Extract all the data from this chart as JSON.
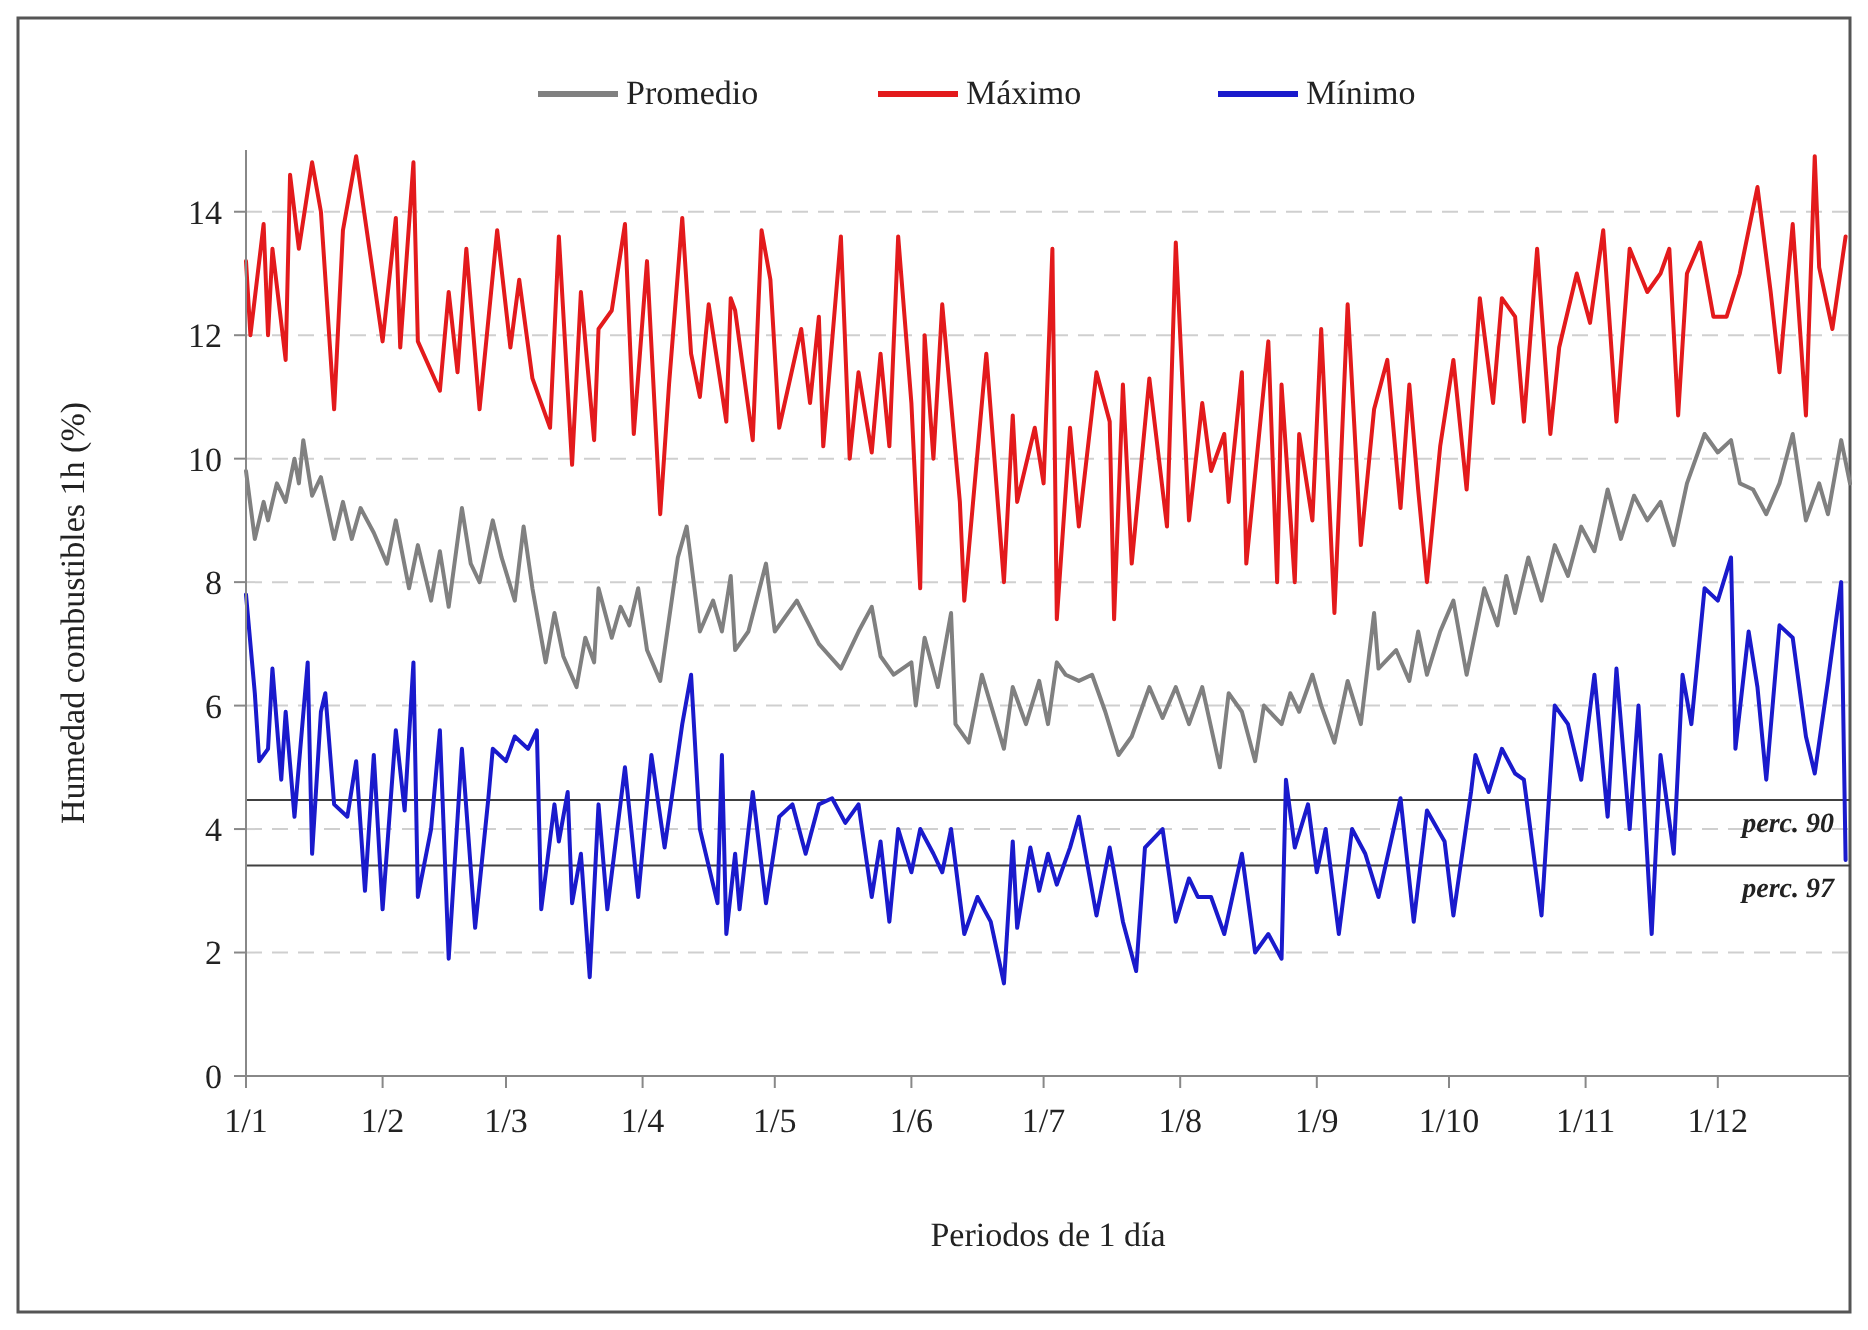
{
  "chart_data": {
    "type": "line",
    "xlabel": "Periodos de 1 día",
    "ylabel": "Humedad combustibles 1h (%)",
    "xlim": [
      "--01-01",
      "--12-31"
    ],
    "ylim": [
      0,
      15
    ],
    "xticks": [
      {
        "value": "--01-01",
        "label": "1/1"
      },
      {
        "value": "--02-01",
        "label": "1/2"
      },
      {
        "value": "--03-01",
        "label": "1/3"
      },
      {
        "value": "--04-01",
        "label": "1/4"
      },
      {
        "value": "--05-01",
        "label": "1/5"
      },
      {
        "value": "--06-01",
        "label": "1/6"
      },
      {
        "value": "--07-01",
        "label": "1/7"
      },
      {
        "value": "--08-01",
        "label": "1/8"
      },
      {
        "value": "--09-01",
        "label": "1/9"
      },
      {
        "value": "--10-01",
        "label": "1/10"
      },
      {
        "value": "--11-01",
        "label": "1/11"
      },
      {
        "value": "--12-01",
        "label": "1/12"
      }
    ],
    "yticks": [
      0,
      2,
      4,
      6,
      8,
      10,
      12,
      14
    ],
    "grid": "y",
    "legend": "top",
    "line_style": "solid",
    "marker": "none",
    "ref_lines": [
      {
        "axis": "y",
        "value": 4.47,
        "label": "perc. 90",
        "color": "#404040"
      },
      {
        "axis": "y",
        "value": 3.41,
        "label": "perc. 97",
        "color": "#404040"
      }
    ],
    "series": [
      {
        "name": "Promedio",
        "color": "#808080",
        "x": [
          "--01-01",
          "--01-03",
          "--01-05",
          "--01-06",
          "--01-08",
          "--01-10",
          "--01-12",
          "--01-13",
          "--01-14",
          "--01-16",
          "--01-18",
          "--01-21",
          "--01-23",
          "--01-25",
          "--01-27",
          "--01-30",
          "--02-02",
          "--02-04",
          "--02-07",
          "--02-09",
          "--02-12",
          "--02-14",
          "--02-16",
          "--02-19",
          "--02-21",
          "--02-23",
          "--02-26",
          "--02-28",
          "--03-03",
          "--03-05",
          "--03-07",
          "--03-10",
          "--03-12",
          "--03-14",
          "--03-17",
          "--03-19",
          "--03-21",
          "--03-22",
          "--03-25",
          "--03-27",
          "--03-29",
          "--03-31",
          "--04-02",
          "--04-05",
          "--04-09",
          "--04-11",
          "--04-14",
          "--04-17",
          "--04-19",
          "--04-21",
          "--04-22",
          "--04-25",
          "--04-29",
          "--05-01",
          "--05-06",
          "--05-11",
          "--05-16",
          "--05-20",
          "--05-23",
          "--05-25",
          "--05-28",
          "--06-01",
          "--06-02",
          "--06-04",
          "--06-07",
          "--06-10",
          "--06-11",
          "--06-14",
          "--06-17",
          "--06-22",
          "--06-24",
          "--06-27",
          "--06-30",
          "--07-02",
          "--07-04",
          "--07-06",
          "--07-09",
          "--07-12",
          "--07-15",
          "--07-18",
          "--07-21",
          "--07-25",
          "--07-28",
          "--07-31",
          "--08-03",
          "--08-06",
          "--08-10",
          "--08-12",
          "--08-15",
          "--08-18",
          "--08-20",
          "--08-24",
          "--08-26",
          "--08-28",
          "--08-31",
          "--09-02",
          "--09-05",
          "--09-08",
          "--09-11",
          "--09-14",
          "--09-15",
          "--09-19",
          "--09-22",
          "--09-24",
          "--09-26",
          "--09-29",
          "--10-02",
          "--10-05",
          "--10-09",
          "--10-12",
          "--10-14",
          "--10-16",
          "--10-19",
          "--10-22",
          "--10-25",
          "--10-28",
          "--10-31",
          "--11-03",
          "--11-06",
          "--11-09",
          "--11-12",
          "--11-15",
          "--11-18",
          "--11-21",
          "--11-24",
          "--11-28",
          "--12-01",
          "--12-04",
          "--12-06",
          "--12-09",
          "--12-12",
          "--12-15",
          "--12-18",
          "--12-21",
          "--12-24",
          "--12-26",
          "--12-29",
          "--12-31"
        ],
        "values": [
          9.8,
          8.7,
          9.3,
          9.0,
          9.6,
          9.3,
          10.0,
          9.6,
          10.3,
          9.4,
          9.7,
          8.7,
          9.3,
          8.7,
          9.2,
          8.8,
          8.3,
          9.0,
          7.9,
          8.6,
          7.7,
          8.5,
          7.6,
          9.2,
          8.3,
          8.0,
          9.0,
          8.4,
          7.7,
          8.9,
          7.9,
          6.7,
          7.5,
          6.8,
          6.3,
          7.1,
          6.7,
          7.9,
          7.1,
          7.6,
          7.3,
          7.9,
          6.9,
          6.4,
          8.4,
          8.9,
          7.2,
          7.7,
          7.2,
          8.1,
          6.9,
          7.2,
          8.3,
          7.2,
          7.7,
          7.0,
          6.6,
          7.2,
          7.6,
          6.8,
          6.5,
          6.7,
          6.0,
          7.1,
          6.3,
          7.5,
          5.7,
          5.4,
          6.5,
          5.3,
          6.3,
          5.7,
          6.4,
          5.7,
          6.7,
          6.5,
          6.4,
          6.5,
          5.9,
          5.2,
          5.5,
          6.3,
          5.8,
          6.3,
          5.7,
          6.3,
          5.0,
          6.2,
          5.9,
          5.1,
          6.0,
          5.7,
          6.2,
          5.9,
          6.5,
          6.0,
          5.4,
          6.4,
          5.7,
          7.5,
          6.6,
          6.9,
          6.4,
          7.2,
          6.5,
          7.2,
          7.7,
          6.5,
          7.9,
          7.3,
          8.1,
          7.5,
          8.4,
          7.7,
          8.6,
          8.1,
          8.9,
          8.5,
          9.5,
          8.7,
          9.4,
          9.0,
          9.3,
          8.6,
          9.6,
          10.4,
          10.1,
          10.3,
          9.6,
          9.5,
          9.1,
          9.6,
          10.4,
          9.0,
          9.6,
          9.1,
          10.3,
          9.6
        ]
      },
      {
        "name": "Máximo",
        "color": "#e31a1c",
        "x": [
          "--01-01",
          "--01-02",
          "--01-05",
          "--01-06",
          "--01-07",
          "--01-10",
          "--01-11",
          "--01-13",
          "--01-16",
          "--01-18",
          "--01-21",
          "--01-23",
          "--01-26",
          "--02-01",
          "--02-04",
          "--02-05",
          "--02-08",
          "--02-09",
          "--02-14",
          "--02-16",
          "--02-18",
          "--02-20",
          "--02-23",
          "--02-27",
          "--03-02",
          "--03-04",
          "--03-07",
          "--03-11",
          "--03-13",
          "--03-16",
          "--03-18",
          "--03-21",
          "--03-22",
          "--03-25",
          "--03-28",
          "--03-30",
          "--04-02",
          "--04-05",
          "--04-07",
          "--04-10",
          "--04-12",
          "--04-14",
          "--04-16",
          "--04-20",
          "--04-21",
          "--04-22",
          "--04-26",
          "--04-28",
          "--04-30",
          "--05-02",
          "--05-07",
          "--05-09",
          "--05-11",
          "--05-12",
          "--05-16",
          "--05-18",
          "--05-20",
          "--05-23",
          "--05-25",
          "--05-27",
          "--05-29",
          "--06-01",
          "--06-03",
          "--06-04",
          "--06-06",
          "--06-08",
          "--06-12",
          "--06-13",
          "--06-18",
          "--06-22",
          "--06-24",
          "--06-25",
          "--06-29",
          "--07-01",
          "--07-03",
          "--07-04",
          "--07-07",
          "--07-09",
          "--07-13",
          "--07-16",
          "--07-17",
          "--07-19",
          "--07-21",
          "--07-25",
          "--07-29",
          "--07-31",
          "--08-03",
          "--08-06",
          "--08-08",
          "--08-11",
          "--08-12",
          "--08-15",
          "--08-16",
          "--08-21",
          "--08-23",
          "--08-24",
          "--08-27",
          "--08-28",
          "--08-31",
          "--09-02",
          "--09-05",
          "--09-08",
          "--09-11",
          "--09-14",
          "--09-17",
          "--09-20",
          "--09-22",
          "--09-24",
          "--09-26",
          "--09-29",
          "--10-02",
          "--10-05",
          "--10-08",
          "--10-11",
          "--10-13",
          "--10-16",
          "--10-18",
          "--10-21",
          "--10-24",
          "--10-26",
          "--10-30",
          "--11-02",
          "--11-05",
          "--11-08",
          "--11-11",
          "--11-15",
          "--11-18",
          "--11-20",
          "--11-22",
          "--11-24",
          "--11-27",
          "--11-30",
          "--12-03",
          "--12-06",
          "--12-10",
          "--12-13",
          "--12-15",
          "--12-18",
          "--12-21",
          "--12-23",
          "--12-24",
          "--12-27",
          "--12-30"
        ],
        "values": [
          13.2,
          12.0,
          13.8,
          12.0,
          13.4,
          11.6,
          14.6,
          13.4,
          14.8,
          14.0,
          10.8,
          13.7,
          14.9,
          11.9,
          13.9,
          11.8,
          14.8,
          11.9,
          11.1,
          12.7,
          11.4,
          13.4,
          10.8,
          13.7,
          11.8,
          12.9,
          11.3,
          10.5,
          13.6,
          9.9,
          12.7,
          10.3,
          12.1,
          12.4,
          13.8,
          10.4,
          13.2,
          9.1,
          11.2,
          13.9,
          11.7,
          11.0,
          12.5,
          10.6,
          12.6,
          12.4,
          10.3,
          13.7,
          12.9,
          10.5,
          12.1,
          10.9,
          12.3,
          10.2,
          13.6,
          10.0,
          11.4,
          10.1,
          11.7,
          10.2,
          13.6,
          10.9,
          7.9,
          12.0,
          10.0,
          12.5,
          9.3,
          7.7,
          11.7,
          8.0,
          10.7,
          9.3,
          10.5,
          9.6,
          13.4,
          7.4,
          10.5,
          8.9,
          11.4,
          10.6,
          7.4,
          11.2,
          8.3,
          11.3,
          8.9,
          13.5,
          9.0,
          10.9,
          9.8,
          10.4,
          9.3,
          11.4,
          8.3,
          11.9,
          8.0,
          11.2,
          8.0,
          10.4,
          9.0,
          12.1,
          7.5,
          12.5,
          8.6,
          10.8,
          11.6,
          9.2,
          11.2,
          9.5,
          8.0,
          10.2,
          11.6,
          9.5,
          12.6,
          10.9,
          12.6,
          12.3,
          10.6,
          13.4,
          10.4,
          11.8,
          13.0,
          12.2,
          13.7,
          10.6,
          13.4,
          12.7,
          13.0,
          13.4,
          10.7,
          13.0,
          13.5,
          12.3,
          12.3,
          13.0,
          14.4,
          12.7,
          11.4,
          13.8,
          10.7,
          14.9,
          13.1,
          12.1,
          13.6
        ]
      },
      {
        "name": "Mínimo",
        "color": "#1a1acc",
        "x": [
          "--01-01",
          "--01-03",
          "--01-04",
          "--01-06",
          "--01-07",
          "--01-09",
          "--01-10",
          "--01-12",
          "--01-15",
          "--01-16",
          "--01-18",
          "--01-19",
          "--01-21",
          "--01-24",
          "--01-26",
          "--01-28",
          "--01-30",
          "--02-01",
          "--02-04",
          "--02-06",
          "--02-08",
          "--02-09",
          "--02-12",
          "--02-14",
          "--02-16",
          "--02-19",
          "--02-22",
          "--02-25",
          "--02-26",
          "--03-01",
          "--03-03",
          "--03-06",
          "--03-08",
          "--03-09",
          "--03-12",
          "--03-13",
          "--03-15",
          "--03-16",
          "--03-18",
          "--03-20",
          "--03-22",
          "--03-24",
          "--03-28",
          "--03-31",
          "--04-03",
          "--04-06",
          "--04-10",
          "--04-12",
          "--04-14",
          "--04-18",
          "--04-19",
          "--04-20",
          "--04-22",
          "--04-23",
          "--04-26",
          "--04-29",
          "--05-02",
          "--05-05",
          "--05-08",
          "--05-11",
          "--05-14",
          "--05-17",
          "--05-20",
          "--05-23",
          "--05-25",
          "--05-27",
          "--05-29",
          "--06-01",
          "--06-03",
          "--06-06",
          "--06-08",
          "--06-10",
          "--06-13",
          "--06-16",
          "--06-19",
          "--06-22",
          "--06-24",
          "--06-25",
          "--06-28",
          "--06-30",
          "--07-02",
          "--07-04",
          "--07-07",
          "--07-09",
          "--07-13",
          "--07-16",
          "--07-19",
          "--07-22",
          "--07-24",
          "--07-28",
          "--07-31",
          "--08-03",
          "--08-05",
          "--08-08",
          "--08-11",
          "--08-15",
          "--08-18",
          "--08-21",
          "--08-24",
          "--08-25",
          "--08-27",
          "--08-30",
          "--09-01",
          "--09-03",
          "--09-06",
          "--09-09",
          "--09-12",
          "--09-15",
          "--09-20",
          "--09-23",
          "--09-26",
          "--09-30",
          "--10-02",
          "--10-06",
          "--10-07",
          "--10-10",
          "--10-13",
          "--10-16",
          "--10-18",
          "--10-22",
          "--10-25",
          "--10-28",
          "--10-31",
          "--11-03",
          "--11-06",
          "--11-08",
          "--11-11",
          "--11-13",
          "--11-16",
          "--11-18",
          "--11-21",
          "--11-23",
          "--11-25",
          "--11-28",
          "--12-01",
          "--12-04",
          "--12-05",
          "--12-08",
          "--12-10",
          "--12-12",
          "--12-15",
          "--12-18",
          "--12-21",
          "--12-23",
          "--12-26",
          "--12-29",
          "--12-30"
        ],
        "values": [
          7.8,
          6.2,
          5.1,
          5.3,
          6.6,
          4.8,
          5.9,
          4.2,
          6.7,
          3.6,
          5.9,
          6.2,
          4.4,
          4.2,
          5.1,
          3.0,
          5.2,
          2.7,
          5.6,
          4.3,
          6.7,
          2.9,
          4.0,
          5.6,
          1.9,
          5.3,
          2.4,
          4.5,
          5.3,
          5.1,
          5.5,
          5.3,
          5.6,
          2.7,
          4.4,
          3.8,
          4.6,
          2.8,
          3.6,
          1.6,
          4.4,
          2.7,
          5.0,
          2.9,
          5.2,
          3.7,
          5.7,
          6.5,
          4.0,
          2.8,
          5.2,
          2.3,
          3.6,
          2.7,
          4.6,
          2.8,
          4.2,
          4.4,
          3.6,
          4.4,
          4.5,
          4.1,
          4.4,
          2.9,
          3.8,
          2.5,
          4.0,
          3.3,
          4.0,
          3.6,
          3.3,
          4.0,
          2.3,
          2.9,
          2.5,
          1.5,
          3.8,
          2.4,
          3.7,
          3.0,
          3.6,
          3.1,
          3.7,
          4.2,
          2.6,
          3.7,
          2.5,
          1.7,
          3.7,
          4.0,
          2.5,
          3.2,
          2.9,
          2.9,
          2.3,
          3.6,
          2.0,
          2.3,
          1.9,
          4.8,
          3.7,
          4.4,
          3.3,
          4.0,
          2.3,
          4.0,
          3.6,
          2.9,
          4.5,
          2.5,
          4.3,
          3.8,
          2.6,
          4.6,
          5.2,
          4.6,
          5.3,
          4.9,
          4.8,
          2.6,
          6.0,
          5.7,
          4.8,
          6.5,
          4.2,
          6.6,
          4.0,
          6.0,
          2.3,
          5.2,
          3.6,
          6.5,
          5.7,
          7.9,
          7.7,
          8.4,
          5.3,
          7.2,
          6.3,
          4.8,
          7.3,
          7.1,
          5.5,
          4.9,
          6.4,
          8.0,
          3.5
        ]
      }
    ]
  }
}
